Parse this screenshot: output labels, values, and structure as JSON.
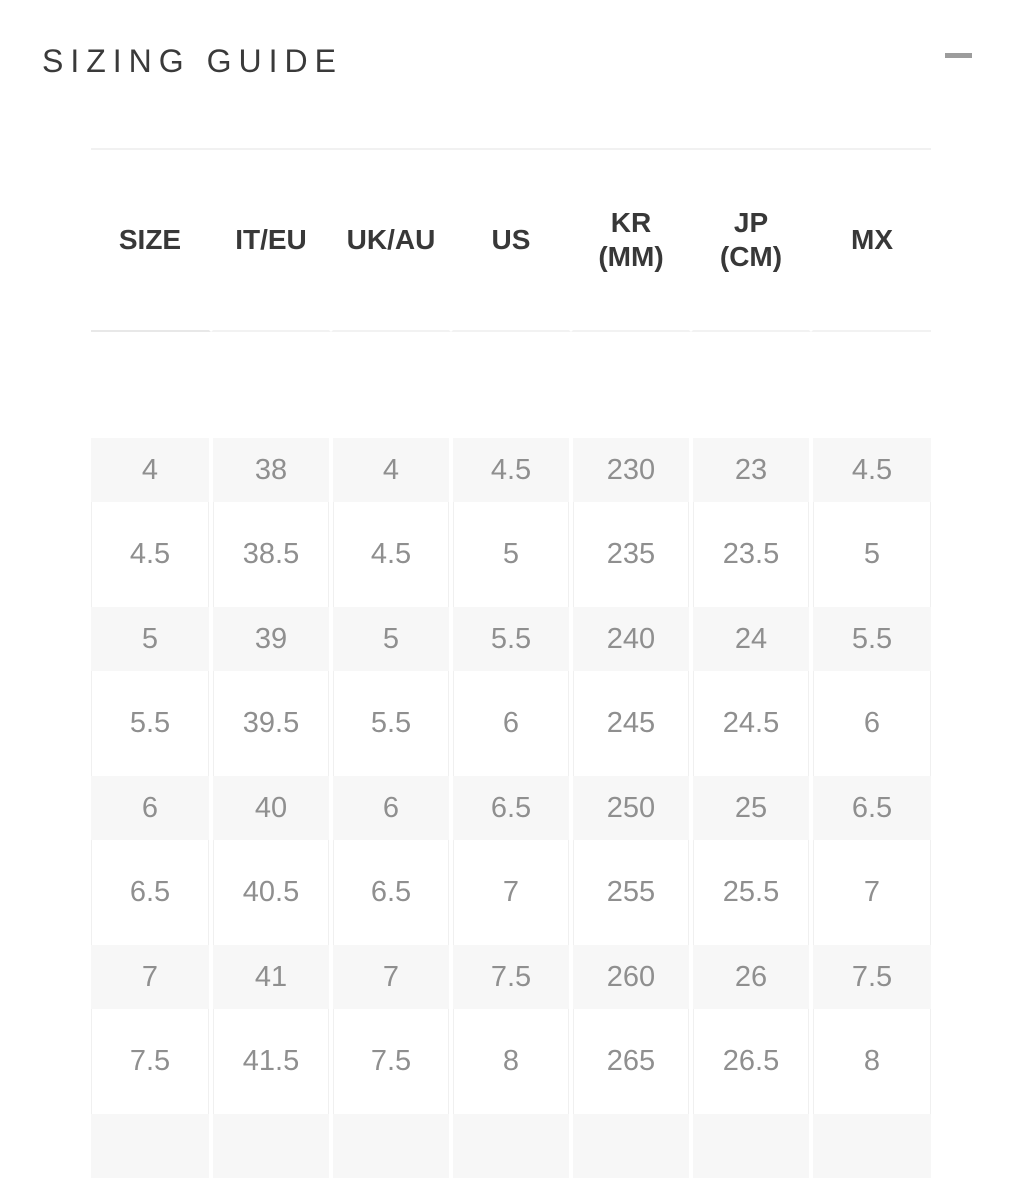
{
  "panel": {
    "title": "SIZING GUIDE",
    "collapse_icon": "minus-icon"
  },
  "table": {
    "columns": [
      "SIZE",
      "IT/EU",
      "UK/AU",
      "US",
      "KR\n(MM)",
      "JP\n(CM)",
      "MX"
    ],
    "column_keys": [
      "size",
      "it-eu",
      "uk-au",
      "us",
      "kr-mm",
      "jp-cm",
      "mx"
    ],
    "rows": [
      [
        "4",
        "38",
        "4",
        "4.5",
        "230",
        "23",
        "4.5"
      ],
      [
        "4.5",
        "38.5",
        "4.5",
        "5",
        "235",
        "23.5",
        "5"
      ],
      [
        "5",
        "39",
        "5",
        "5.5",
        "240",
        "24",
        "5.5"
      ],
      [
        "5.5",
        "39.5",
        "5.5",
        "6",
        "245",
        "24.5",
        "6"
      ],
      [
        "6",
        "40",
        "6",
        "6.5",
        "250",
        "25",
        "6.5"
      ],
      [
        "6.5",
        "40.5",
        "6.5",
        "7",
        "255",
        "25.5",
        "7"
      ],
      [
        "7",
        "41",
        "7",
        "7.5",
        "260",
        "26",
        "7.5"
      ],
      [
        "7.5",
        "41.5",
        "7.5",
        "8",
        "265",
        "26.5",
        "8"
      ]
    ],
    "partial_row": [
      "",
      "",
      "",
      "",
      "",
      "",
      ""
    ]
  },
  "colors": {
    "title_text": "#3a3a3a",
    "header_text": "#383838",
    "body_text": "#8f8f8f",
    "row_alt_bg": "#f7f7f7",
    "divider": "#f1f1f1",
    "icon": "#9c9c9c"
  }
}
